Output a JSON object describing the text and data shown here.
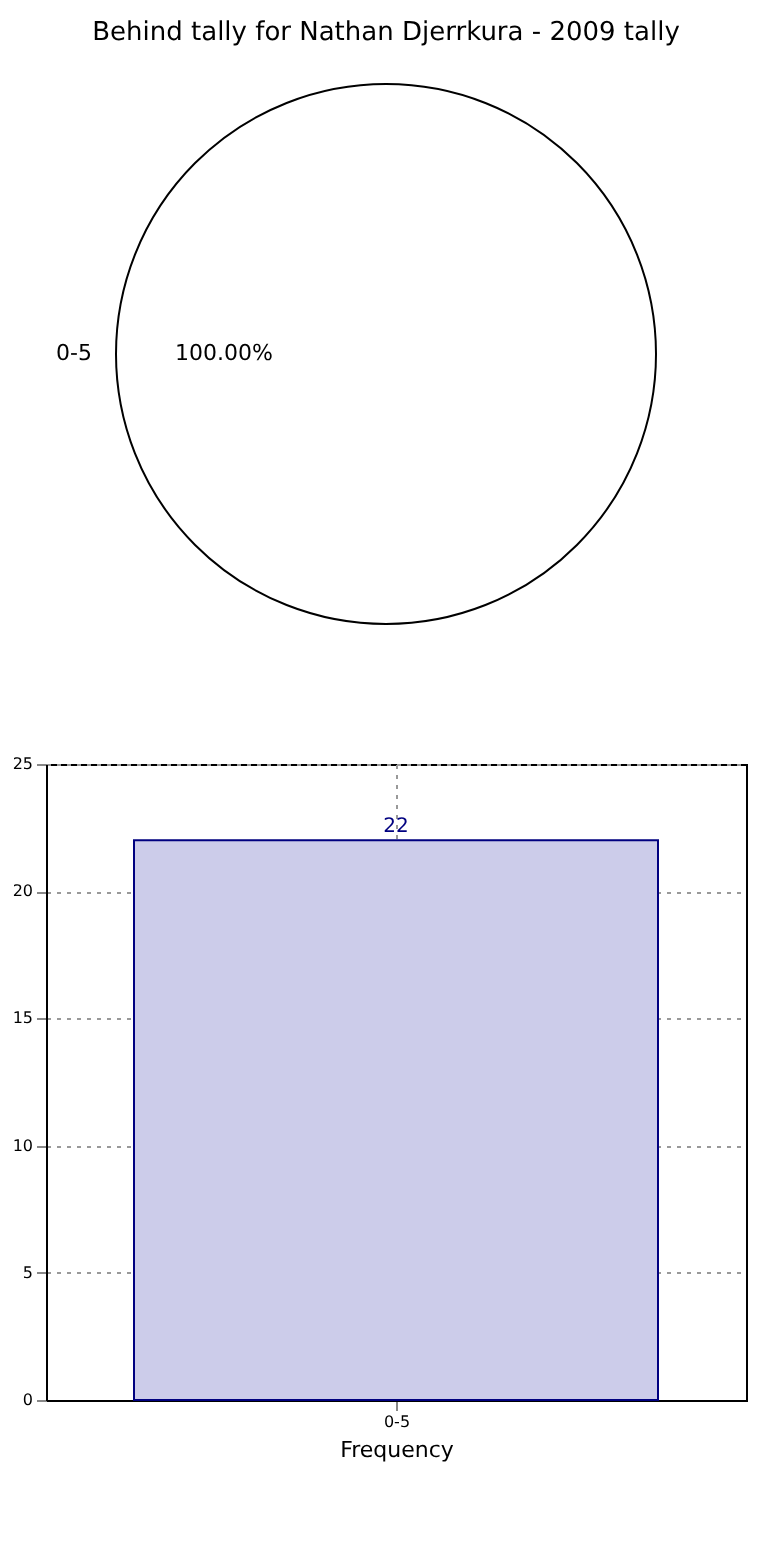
{
  "chart_data": [
    {
      "type": "pie",
      "title": "Behind tally for Nathan Djerrkura - 2009 tally",
      "categories": [
        "0-5"
      ],
      "values": [
        100
      ],
      "colors": [
        "#ffffff"
      ],
      "value_labels": [
        "100.00%"
      ]
    },
    {
      "type": "bar",
      "xlabel": "Frequency",
      "categories": [
        "0-5"
      ],
      "series": [
        {
          "color": "#ccccea",
          "values": [
            22
          ]
        }
      ],
      "ylim": [
        0,
        25
      ],
      "yticks": [
        0,
        5,
        10,
        15,
        20,
        25
      ],
      "grid": true,
      "data_labels": true
    }
  ]
}
